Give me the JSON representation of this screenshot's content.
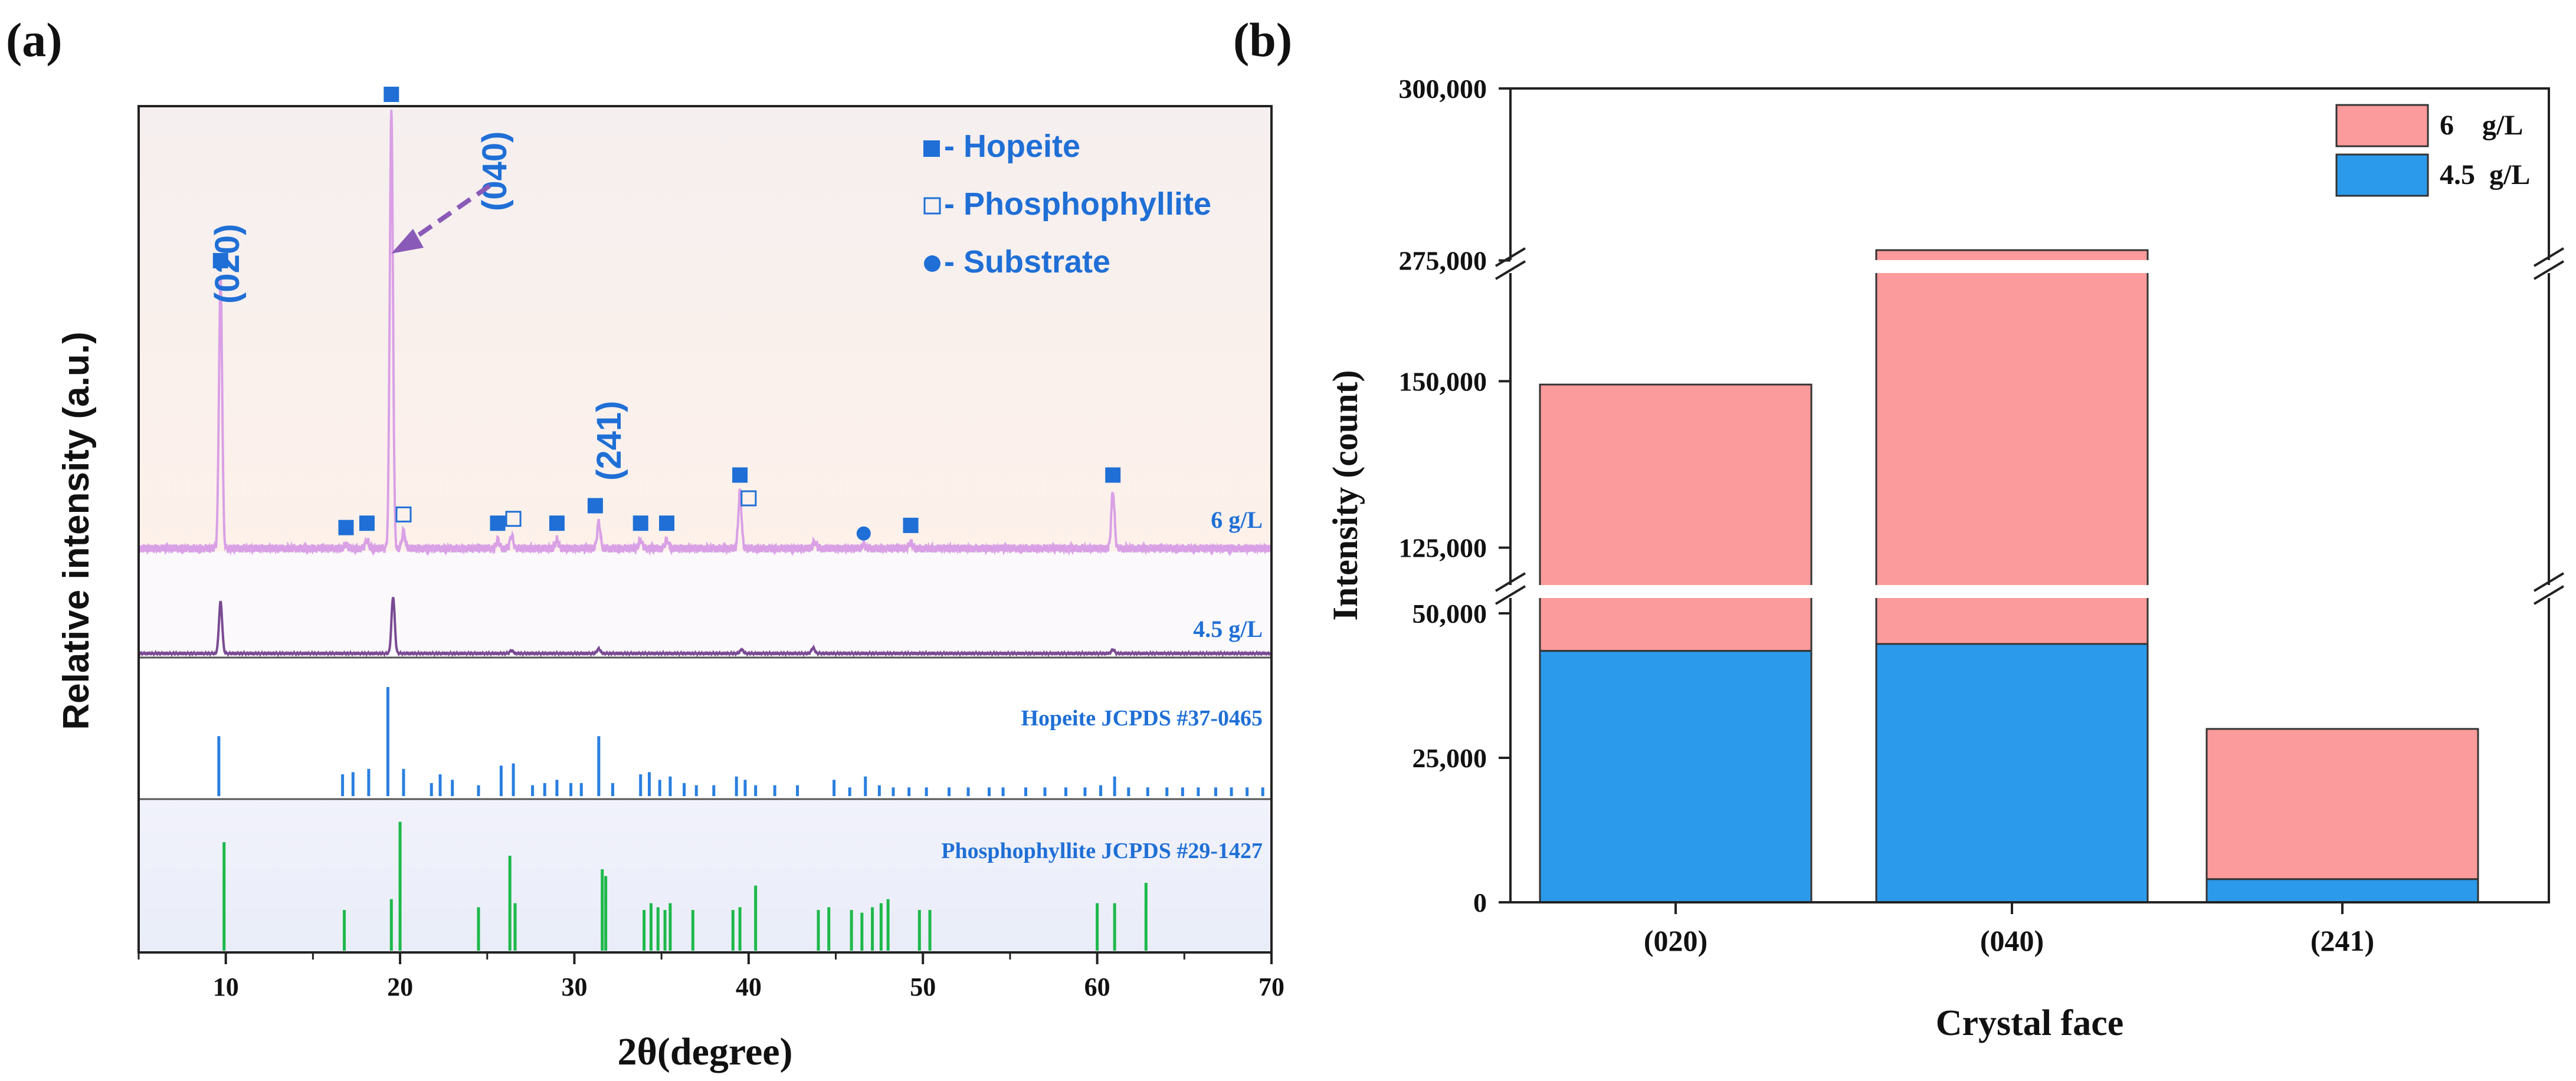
{
  "colors": {
    "hopeite_blue": "#1f6fd6",
    "pink_line": "#d9a0e6",
    "purple_line": "#7a4a93",
    "ref_blue": "#2a7fe0",
    "ref_green": "#1db84a",
    "bar_pink": "#fc9b9b",
    "bar_blue": "#2b9aea",
    "arrow": "#8a5ab8",
    "top_bg": "#fbf0ea",
    "mid_bg": "#ffffff",
    "low_bg": "#eef1fb"
  },
  "chart_data": [
    {
      "panel_label": "(a)",
      "type": "line",
      "title": "",
      "xlabel": "2θ(degree)",
      "ylabel": "Relative intensity (a.u.)",
      "xlim": [
        5,
        70
      ],
      "xticks": [
        "10",
        "20",
        "30",
        "40",
        "50",
        "60",
        "70"
      ],
      "xtick_values": [
        10,
        20,
        30,
        40,
        50,
        60,
        70
      ],
      "legend": [
        {
          "symbol": "filled-square",
          "label": "■- Hopeite"
        },
        {
          "symbol": "open-square",
          "label": "□- Phosphophyllite"
        },
        {
          "symbol": "filled-circle",
          "label": "●- Substrate"
        }
      ],
      "legend_text": {
        "hopeite": "- Hopeite",
        "phosphophyllite": "- Phosphophyllite",
        "substrate": "- Substrate"
      },
      "annotations": {
        "p020": "(020)",
        "p040": "(040)",
        "p241": "(241)"
      },
      "series": [
        {
          "name": "6 g/L",
          "peaks": [
            {
              "x": 9.7,
              "h": 0.62
            },
            {
              "x": 16.9,
              "h": 0.01
            },
            {
              "x": 18.1,
              "h": 0.02
            },
            {
              "x": 19.5,
              "h": 1.0
            },
            {
              "x": 20.2,
              "h": 0.04
            },
            {
              "x": 25.6,
              "h": 0.02
            },
            {
              "x": 26.4,
              "h": 0.03
            },
            {
              "x": 29.0,
              "h": 0.02
            },
            {
              "x": 31.4,
              "h": 0.06
            },
            {
              "x": 33.8,
              "h": 0.02
            },
            {
              "x": 35.3,
              "h": 0.02
            },
            {
              "x": 39.5,
              "h": 0.13
            },
            {
              "x": 43.8,
              "h": 0.015
            },
            {
              "x": 46.6,
              "h": 0.01
            },
            {
              "x": 49.3,
              "h": 0.015
            },
            {
              "x": 60.9,
              "h": 0.13
            }
          ]
        },
        {
          "name": "4.5 g/L",
          "peaks": [
            {
              "x": 9.7,
              "h": 0.55
            },
            {
              "x": 19.6,
              "h": 0.6
            },
            {
              "x": 26.4,
              "h": 0.03
            },
            {
              "x": 31.4,
              "h": 0.05
            },
            {
              "x": 39.6,
              "h": 0.04
            },
            {
              "x": 43.7,
              "h": 0.06
            },
            {
              "x": 60.9,
              "h": 0.04
            }
          ]
        }
      ],
      "markers_6gL": [
        {
          "x": 9.7,
          "sym": "filled-square"
        },
        {
          "x": 16.9,
          "sym": "filled-square"
        },
        {
          "x": 18.1,
          "sym": "filled-square"
        },
        {
          "x": 19.5,
          "sym": "filled-square"
        },
        {
          "x": 20.2,
          "sym": "open-square"
        },
        {
          "x": 25.6,
          "sym": "filled-square"
        },
        {
          "x": 26.5,
          "sym": "open-square"
        },
        {
          "x": 29.0,
          "sym": "filled-square"
        },
        {
          "x": 31.2,
          "sym": "filled-square"
        },
        {
          "x": 33.8,
          "sym": "filled-square"
        },
        {
          "x": 35.3,
          "sym": "filled-square"
        },
        {
          "x": 39.5,
          "sym": "filled-square"
        },
        {
          "x": 40.0,
          "sym": "open-square"
        },
        {
          "x": 46.6,
          "sym": "filled-circle"
        },
        {
          "x": 49.3,
          "sym": "filled-square"
        },
        {
          "x": 60.9,
          "sym": "filled-square"
        }
      ],
      "series_labels": {
        "s6": "6 g/L",
        "s45": "4.5 g/L"
      },
      "reference_labels": {
        "hopeite": "Hopeite JCPDS #37-0465",
        "phosphophyllite": "Phosphophyllite JCPDS #29-1427"
      },
      "hopeite_ref": [
        {
          "x": 9.6,
          "h": 0.55
        },
        {
          "x": 16.7,
          "h": 0.2
        },
        {
          "x": 17.3,
          "h": 0.22
        },
        {
          "x": 18.2,
          "h": 0.25
        },
        {
          "x": 19.3,
          "h": 1.0
        },
        {
          "x": 20.2,
          "h": 0.25
        },
        {
          "x": 21.8,
          "h": 0.12
        },
        {
          "x": 22.3,
          "h": 0.2
        },
        {
          "x": 23.0,
          "h": 0.15
        },
        {
          "x": 24.5,
          "h": 0.1
        },
        {
          "x": 25.8,
          "h": 0.28
        },
        {
          "x": 26.5,
          "h": 0.3
        },
        {
          "x": 27.6,
          "h": 0.1
        },
        {
          "x": 28.3,
          "h": 0.12
        },
        {
          "x": 29.0,
          "h": 0.15
        },
        {
          "x": 29.8,
          "h": 0.12
        },
        {
          "x": 30.4,
          "h": 0.12
        },
        {
          "x": 31.4,
          "h": 0.55
        },
        {
          "x": 32.2,
          "h": 0.12
        },
        {
          "x": 33.8,
          "h": 0.2
        },
        {
          "x": 34.3,
          "h": 0.22
        },
        {
          "x": 34.9,
          "h": 0.15
        },
        {
          "x": 35.5,
          "h": 0.18
        },
        {
          "x": 36.3,
          "h": 0.12
        },
        {
          "x": 37.0,
          "h": 0.1
        },
        {
          "x": 38.0,
          "h": 0.1
        },
        {
          "x": 39.3,
          "h": 0.18
        },
        {
          "x": 39.8,
          "h": 0.15
        },
        {
          "x": 40.4,
          "h": 0.1
        },
        {
          "x": 41.5,
          "h": 0.1
        },
        {
          "x": 42.8,
          "h": 0.1
        },
        {
          "x": 44.9,
          "h": 0.15
        },
        {
          "x": 45.8,
          "h": 0.08
        },
        {
          "x": 46.7,
          "h": 0.18
        },
        {
          "x": 47.5,
          "h": 0.1
        },
        {
          "x": 48.3,
          "h": 0.08
        },
        {
          "x": 49.2,
          "h": 0.08
        },
        {
          "x": 50.2,
          "h": 0.08
        },
        {
          "x": 51.5,
          "h": 0.08
        },
        {
          "x": 52.6,
          "h": 0.08
        },
        {
          "x": 53.8,
          "h": 0.08
        },
        {
          "x": 54.6,
          "h": 0.08
        },
        {
          "x": 55.9,
          "h": 0.08
        },
        {
          "x": 57.0,
          "h": 0.08
        },
        {
          "x": 58.2,
          "h": 0.08
        },
        {
          "x": 59.3,
          "h": 0.08
        },
        {
          "x": 60.2,
          "h": 0.1
        },
        {
          "x": 61.0,
          "h": 0.18
        },
        {
          "x": 61.8,
          "h": 0.08
        },
        {
          "x": 62.9,
          "h": 0.08
        },
        {
          "x": 64.0,
          "h": 0.08
        },
        {
          "x": 64.9,
          "h": 0.08
        },
        {
          "x": 65.8,
          "h": 0.08
        },
        {
          "x": 66.8,
          "h": 0.08
        },
        {
          "x": 67.7,
          "h": 0.08
        },
        {
          "x": 68.6,
          "h": 0.08
        },
        {
          "x": 69.5,
          "h": 0.08
        }
      ],
      "phosphophyllite_ref": [
        {
          "x": 9.9,
          "h": 0.8
        },
        {
          "x": 16.8,
          "h": 0.3
        },
        {
          "x": 19.5,
          "h": 0.38
        },
        {
          "x": 20.0,
          "h": 0.95
        },
        {
          "x": 24.5,
          "h": 0.32
        },
        {
          "x": 26.3,
          "h": 0.7
        },
        {
          "x": 26.6,
          "h": 0.35
        },
        {
          "x": 31.6,
          "h": 0.6
        },
        {
          "x": 31.8,
          "h": 0.55
        },
        {
          "x": 34.0,
          "h": 0.3
        },
        {
          "x": 34.4,
          "h": 0.35
        },
        {
          "x": 34.8,
          "h": 0.32
        },
        {
          "x": 35.2,
          "h": 0.3
        },
        {
          "x": 35.5,
          "h": 0.35
        },
        {
          "x": 36.8,
          "h": 0.3
        },
        {
          "x": 39.1,
          "h": 0.3
        },
        {
          "x": 39.5,
          "h": 0.32
        },
        {
          "x": 40.4,
          "h": 0.48
        },
        {
          "x": 44.0,
          "h": 0.3
        },
        {
          "x": 44.6,
          "h": 0.32
        },
        {
          "x": 45.9,
          "h": 0.3
        },
        {
          "x": 46.5,
          "h": 0.28
        },
        {
          "x": 47.1,
          "h": 0.32
        },
        {
          "x": 47.6,
          "h": 0.35
        },
        {
          "x": 48.0,
          "h": 0.38
        },
        {
          "x": 49.8,
          "h": 0.3
        },
        {
          "x": 50.4,
          "h": 0.3
        },
        {
          "x": 60.0,
          "h": 0.35
        },
        {
          "x": 61.0,
          "h": 0.35
        },
        {
          "x": 62.8,
          "h": 0.5
        }
      ]
    },
    {
      "panel_label": "(b)",
      "type": "bar",
      "stacked": true,
      "title": "",
      "xlabel": "Crystal face",
      "ylabel": "Intensity (count)",
      "categories": [
        "(020)",
        "(040)",
        "(241)"
      ],
      "series": [
        {
          "name": "4.5  g/L",
          "values": [
            43500,
            44700,
            4000
          ]
        },
        {
          "name": "6    g/L",
          "values": [
            149500,
            276500,
            30000
          ]
        }
      ],
      "axis_breaks": [
        [
          50000,
          120000
        ],
        [
          155000,
          270000
        ]
      ],
      "ylim": [
        0,
        300000
      ],
      "yticks": [
        "0",
        "25,000",
        "50,000",
        "125,000",
        "150,000",
        "275,000",
        "300,000"
      ],
      "ytick_values": [
        0,
        25000,
        50000,
        125000,
        150000,
        275000,
        300000
      ],
      "legend": [
        {
          "label": "6    g/L",
          "color": "#fc9b9b"
        },
        {
          "label": "4.5  g/L",
          "color": "#2b9aea"
        }
      ]
    }
  ]
}
